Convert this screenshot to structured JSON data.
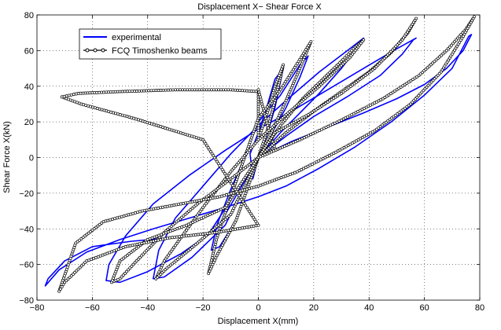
{
  "chart_data": {
    "type": "line",
    "title": "Displacement X− Shear Force X",
    "xlabel": "Displacement X(mm)",
    "ylabel": "Shear Force X(kN)",
    "xlim": [
      -80,
      80
    ],
    "ylim": [
      -80,
      80
    ],
    "xticks": [
      -80,
      -60,
      -40,
      -20,
      0,
      20,
      40,
      60,
      80
    ],
    "yticks": [
      -80,
      -60,
      -40,
      -20,
      0,
      20,
      40,
      60,
      80
    ],
    "xtick_labels": [
      "−80",
      "−60",
      "−40",
      "−20",
      "0",
      "20",
      "40",
      "60",
      "80"
    ],
    "ytick_labels": [
      "−80",
      "−60",
      "−40",
      "−20",
      "0",
      "20",
      "40",
      "60",
      "80"
    ],
    "grid": true,
    "legend_position": "top-left",
    "series": [
      {
        "name": "experimental",
        "color": "#0000ff",
        "marker": "none",
        "loops": [
          {
            "x": [
              0,
              3,
              6,
              9,
              6,
              3,
              0,
              -3,
              -2,
              0
            ],
            "y": [
              0,
              12,
              28,
              50,
              44,
              28,
              14,
              2,
              -12,
              0
            ]
          },
          {
            "x": [
              0,
              5,
              10,
              15,
              18,
              15,
              8,
              0,
              -5,
              -10,
              -15,
              -17,
              -14,
              -8,
              0
            ],
            "y": [
              0,
              14,
              28,
              45,
              57,
              52,
              35,
              20,
              0,
              -18,
              -38,
              -52,
              -50,
              -35,
              0
            ]
          },
          {
            "x": [
              0,
              8,
              15,
              22,
              30,
              36,
              38,
              33,
              22,
              10,
              0,
              -10,
              -20,
              -30,
              -36,
              -38,
              -34,
              -24,
              -12,
              0
            ],
            "y": [
              0,
              14,
              25,
              36,
              50,
              62,
              67,
              61,
              48,
              32,
              18,
              2,
              -16,
              -34,
              -52,
              -68,
              -67,
              -56,
              -38,
              0
            ]
          },
          {
            "x": [
              0,
              10,
              20,
              32,
              44,
              52,
              56,
              57,
              50,
              38,
              25,
              12,
              0,
              -12,
              -25,
              -38,
              -48,
              -54,
              -55,
              -50,
              -40,
              -28,
              -15,
              0
            ],
            "y": [
              0,
              12,
              23,
              34,
              46,
              58,
              66,
              67,
              61,
              50,
              38,
              26,
              16,
              4,
              -10,
              -26,
              -44,
              -60,
              -69,
              -70,
              -64,
              -54,
              -40,
              0
            ]
          },
          {
            "x": [
              0,
              12,
              25,
              38,
              50,
              60,
              68,
              74,
              77,
              76,
              70,
              60,
              48,
              35,
              22,
              10,
              0,
              -12,
              -25,
              -38,
              -50,
              -62,
              -72,
              -77,
              -76,
              -70,
              -60,
              -46,
              -32,
              -18,
              0
            ],
            "y": [
              0,
              9,
              17,
              25,
              33,
              41,
              50,
              60,
              69,
              68,
              50,
              35,
              20,
              6,
              -6,
              -16,
              -22,
              -28,
              -34,
              -40,
              -46,
              -53,
              -63,
              -72,
              -68,
              -58,
              -50,
              -47,
              -45,
              -43,
              0
            ]
          }
        ]
      },
      {
        "name": "FCQ Timoshenko beams",
        "color": "#000000",
        "marker": "circle",
        "loops": [
          {
            "x": [
              0,
              3,
              6,
              9,
              6,
              3,
              0,
              0,
              0,
              2,
              4,
              6,
              0
            ],
            "y": [
              0,
              14,
              32,
              52,
              40,
              24,
              10,
              30,
              38,
              26,
              14,
              5,
              0
            ]
          },
          {
            "x": [
              0,
              5,
              10,
              15,
              19,
              15,
              8,
              0,
              -5,
              -10,
              -15,
              -18,
              -15,
              -8,
              0
            ],
            "y": [
              0,
              15,
              32,
              50,
              65,
              55,
              38,
              22,
              0,
              -22,
              -45,
              -65,
              -55,
              -35,
              0
            ]
          },
          {
            "x": [
              0,
              8,
              16,
              24,
              30,
              35,
              38,
              33,
              22,
              10,
              0,
              -10,
              -20,
              -28,
              -34,
              -37,
              -33,
              -22,
              -10,
              0
            ],
            "y": [
              0,
              18,
              33,
              45,
              54,
              62,
              66,
              56,
              40,
              24,
              10,
              -8,
              -28,
              -45,
              -58,
              -68,
              -62,
              -48,
              -32,
              0
            ]
          },
          {
            "x": [
              0,
              10,
              20,
              30,
              40,
              48,
              54,
              57,
              52,
              42,
              30,
              18,
              6,
              0,
              -10,
              -22,
              -34,
              -44,
              -50,
              -53,
              -50,
              -40,
              -26,
              -12,
              0
            ],
            "y": [
              0,
              14,
              26,
              37,
              48,
              59,
              70,
              78,
              66,
              50,
              36,
              24,
              14,
              0,
              -12,
              -26,
              -42,
              -58,
              -68,
              -70,
              -58,
              -46,
              -38,
              -28,
              0
            ]
          },
          {
            "x": [
              0,
              15,
              30,
              45,
              58,
              68,
              75,
              78,
              74,
              66,
              55,
              42,
              28,
              14,
              0,
              -14,
              -28,
              -42,
              -56,
              -66,
              -72,
              -70,
              -62,
              -48,
              -32,
              -15,
              0,
              -20,
              -45,
              -64,
              -71,
              -65,
              -50,
              -30,
              -10,
              0
            ],
            "y": [
              0,
              10,
              21,
              33,
              46,
              60,
              72,
              79,
              68,
              48,
              30,
              15,
              3,
              -8,
              -16,
              -22,
              -26,
              -30,
              -36,
              -48,
              -75,
              -70,
              -58,
              -50,
              -45,
              -42,
              -38,
              10,
              22,
              30,
              34,
              36,
              37,
              38,
              38,
              37
            ]
          }
        ]
      }
    ]
  }
}
